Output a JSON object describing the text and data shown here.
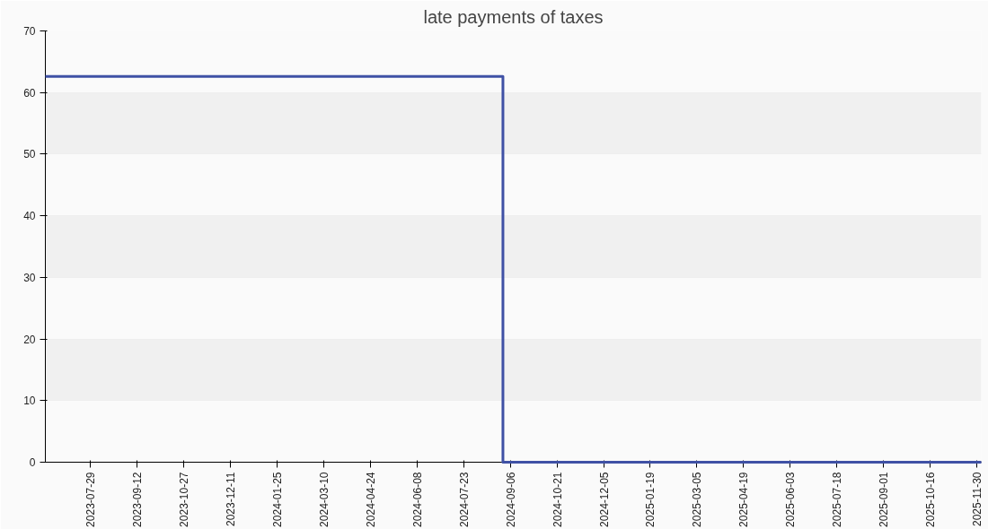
{
  "chart_data": {
    "type": "step",
    "title": "late payments of taxes",
    "x": [
      "2023-06-16",
      "2024-08-30",
      "2025-12-04"
    ],
    "series": [
      {
        "color": "#3f51a5",
        "values": [
          62.6,
          0,
          0
        ]
      }
    ],
    "xlim": [
      "2023-06-16",
      "2025-12-04"
    ],
    "xticks": [
      "2023-07-29",
      "2023-09-12",
      "2023-10-27",
      "2023-12-11",
      "2024-01-25",
      "2024-03-10",
      "2024-04-24",
      "2024-06-08",
      "2024-07-23",
      "2024-09-06",
      "2024-10-21",
      "2024-12-05",
      "2025-01-19",
      "2025-03-05",
      "2025-04-19",
      "2025-06-03",
      "2025-07-18",
      "2025-09-01",
      "2025-10-16",
      "2025-11-30"
    ],
    "ylim": [
      0,
      70
    ],
    "yticks": [
      0,
      10,
      20,
      30,
      40,
      50,
      60,
      70
    ],
    "grid": "y"
  }
}
